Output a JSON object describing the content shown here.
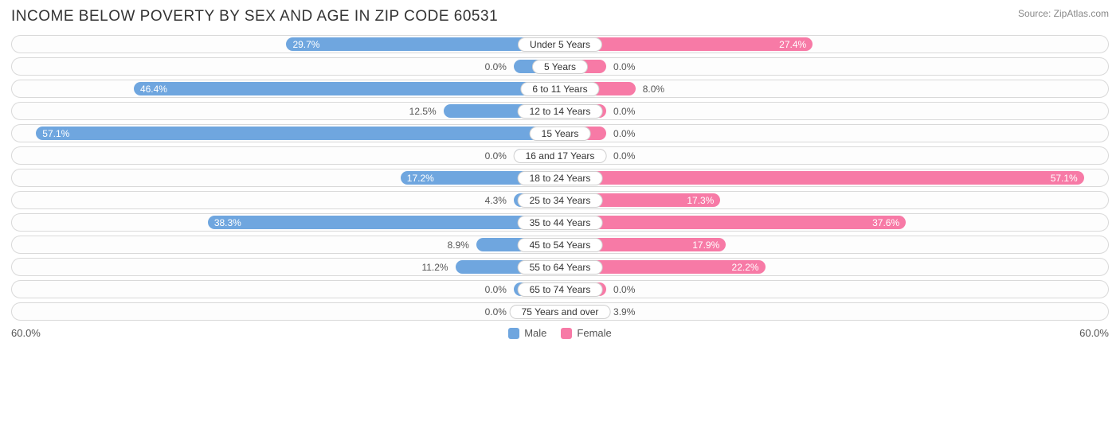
{
  "title": "INCOME BELOW POVERTY BY SEX AND AGE IN ZIP CODE 60531",
  "source": "Source: ZipAtlas.com",
  "axis_max_label": "60.0%",
  "axis_max": 60.0,
  "min_bar_pct": 8.0,
  "colors": {
    "male": "#6fa6df",
    "female": "#f77aa6",
    "track_border": "#d9d9d9",
    "bg": "#ffffff",
    "text": "#333333",
    "muted": "#888888"
  },
  "legend": {
    "male": "Male",
    "female": "Female"
  },
  "label_threshold": 15.0,
  "categories": [
    {
      "label": "Under 5 Years",
      "male": 29.7,
      "female": 27.4
    },
    {
      "label": "5 Years",
      "male": 0.0,
      "female": 0.0
    },
    {
      "label": "6 to 11 Years",
      "male": 46.4,
      "female": 8.0
    },
    {
      "label": "12 to 14 Years",
      "male": 12.5,
      "female": 0.0
    },
    {
      "label": "15 Years",
      "male": 57.1,
      "female": 0.0
    },
    {
      "label": "16 and 17 Years",
      "male": 0.0,
      "female": 0.0
    },
    {
      "label": "18 to 24 Years",
      "male": 17.2,
      "female": 57.1
    },
    {
      "label": "25 to 34 Years",
      "male": 4.3,
      "female": 17.3
    },
    {
      "label": "35 to 44 Years",
      "male": 38.3,
      "female": 37.6
    },
    {
      "label": "45 to 54 Years",
      "male": 8.9,
      "female": 17.9
    },
    {
      "label": "55 to 64 Years",
      "male": 11.2,
      "female": 22.2
    },
    {
      "label": "65 to 74 Years",
      "male": 0.0,
      "female": 0.0
    },
    {
      "label": "75 Years and over",
      "male": 0.0,
      "female": 3.9
    }
  ]
}
